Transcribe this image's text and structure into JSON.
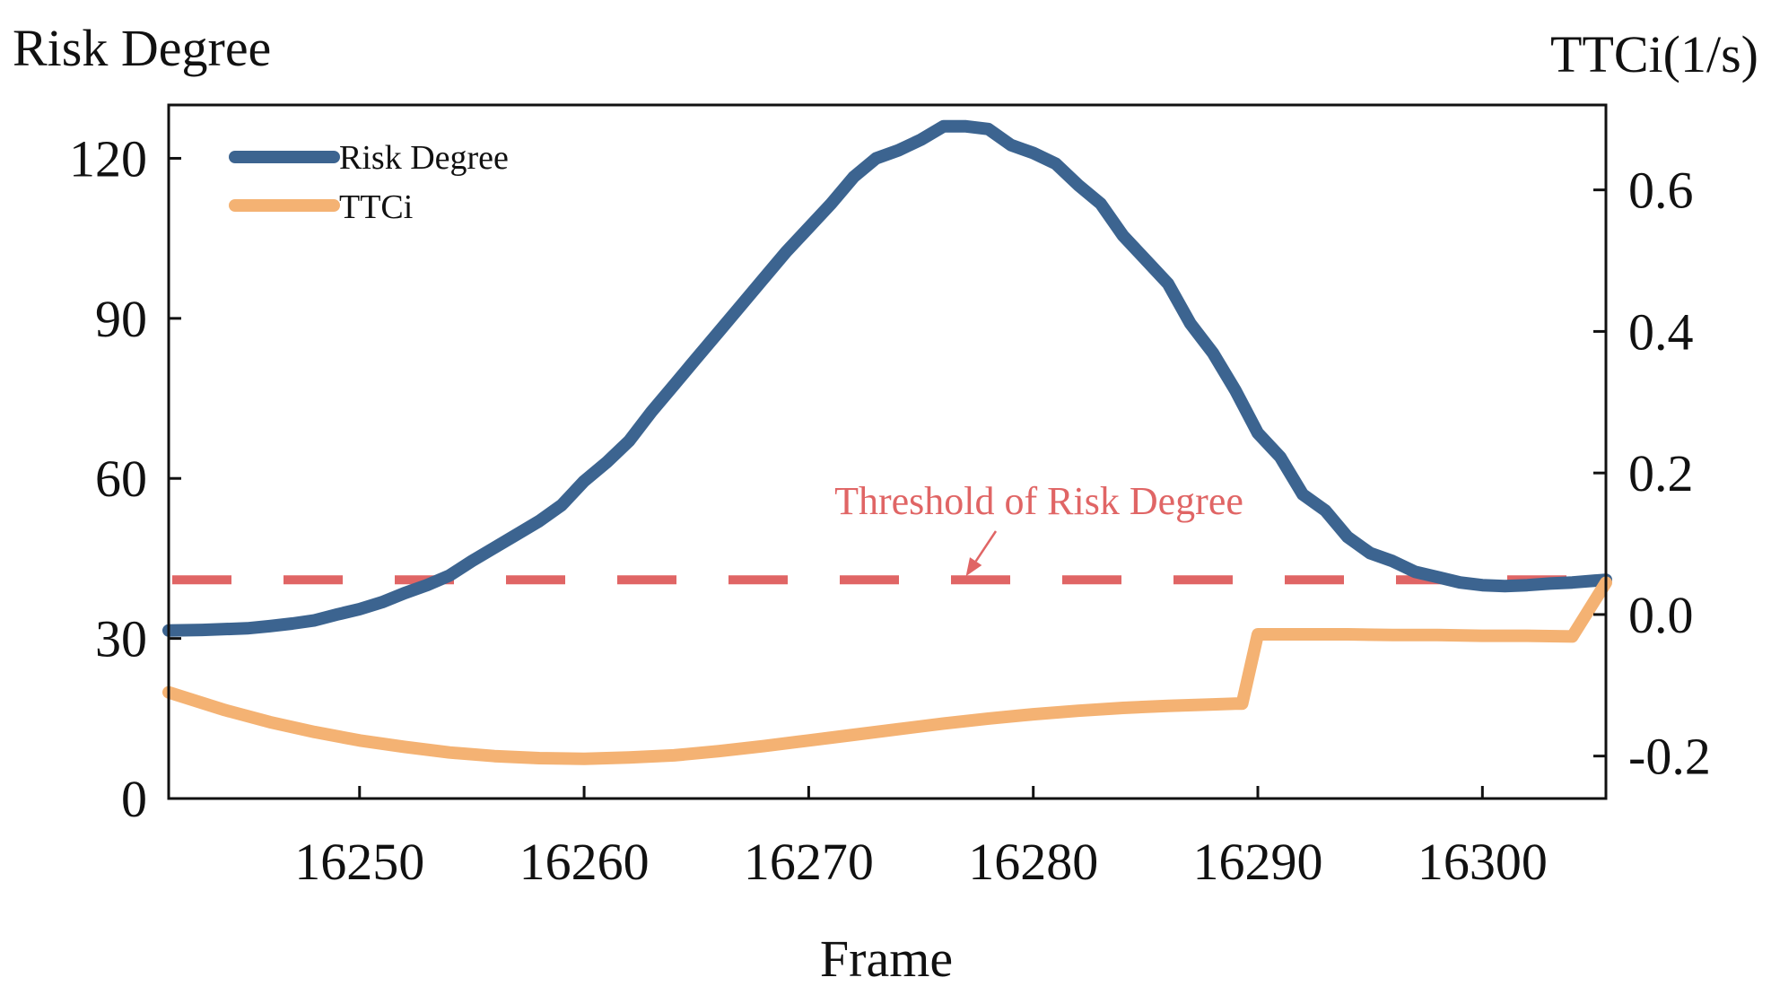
{
  "colors": {
    "risk": "#3c6490",
    "ttci": "#f4b273",
    "threshold": "#e06565",
    "axis": "#111111"
  },
  "chart_data": {
    "type": "line",
    "xlabel": "Frame",
    "ylabel_left": "Risk Degree",
    "ylabel_right": "TTCi(1/s)",
    "xlim": [
      16241.5,
      16305.5
    ],
    "ylim_left": [
      0,
      130
    ],
    "ylim_right": [
      -0.26,
      0.72
    ],
    "x_ticks": [
      16250,
      16260,
      16270,
      16280,
      16290,
      16300
    ],
    "x_tick_labels": [
      "16250",
      "16260",
      "16270",
      "16280",
      "16290",
      "16300"
    ],
    "y_left_ticks": [
      0,
      30,
      60,
      90,
      120
    ],
    "y_left_tick_labels": [
      "0",
      "30",
      "60",
      "90",
      "120"
    ],
    "y_right_ticks": [
      -0.2,
      0.0,
      0.2,
      0.4,
      0.6
    ],
    "y_right_tick_labels": [
      "-0.2",
      "0.0",
      "0.2",
      "0.4",
      "0.6"
    ],
    "legend": {
      "position": "top-left",
      "entries": [
        "Risk Degree",
        "TTCi"
      ]
    },
    "annotation": {
      "text": "Threshold of Risk Degree",
      "points_to_x": 16277,
      "points_to_y": 41
    },
    "threshold": {
      "name": "Threshold of Risk Degree",
      "value": 41,
      "axis": "left",
      "style": "dashed"
    },
    "series": [
      {
        "name": "Risk Degree",
        "axis": "left",
        "x": [
          16241.5,
          16243,
          16245,
          16246,
          16247,
          16248,
          16249,
          16250,
          16251,
          16252,
          16253,
          16254,
          16255,
          16256,
          16257,
          16258,
          16259,
          16260,
          16261,
          16262,
          16263,
          16264,
          16265,
          16266,
          16267,
          16268,
          16269,
          16270,
          16271,
          16272,
          16273,
          16274,
          16275,
          16276,
          16277,
          16278,
          16279,
          16280,
          16281,
          16282,
          16283,
          16284,
          16285,
          16286,
          16287,
          16288,
          16289,
          16290,
          16291,
          16292,
          16293,
          16294,
          16295,
          16296,
          16297,
          16298,
          16299,
          16300,
          16301,
          16302,
          16303,
          16304,
          16305.5
        ],
        "values": [
          31.5,
          31.6,
          31.9,
          32.3,
          32.8,
          33.4,
          34.5,
          35.5,
          36.8,
          38.5,
          40,
          41.8,
          44.5,
          47,
          49.5,
          52,
          55,
          59.5,
          63,
          67,
          72.5,
          77.5,
          82.5,
          87.5,
          92.5,
          97.5,
          102.5,
          107,
          111.5,
          116.5,
          120,
          121.5,
          123.5,
          126,
          126,
          125.5,
          122.5,
          121,
          119,
          115,
          111.5,
          105.5,
          101,
          96.5,
          89,
          83.5,
          76.5,
          68.5,
          64,
          57,
          54,
          49,
          46,
          44.5,
          42.5,
          41.5,
          40.5,
          40,
          39.8,
          40,
          40.3,
          40.5,
          41
        ]
      },
      {
        "name": "TTCi",
        "axis": "right",
        "x": [
          16241.5,
          16244,
          16246,
          16248,
          16250,
          16252,
          16254,
          16256,
          16258,
          16260,
          16262,
          16264,
          16266,
          16268,
          16270,
          16272,
          16274,
          16276,
          16278,
          16280,
          16282,
          16284,
          16286,
          16288,
          16289,
          16289.3,
          16290,
          16292,
          16294,
          16296,
          16298,
          16300,
          16302,
          16304,
          16305.5
        ],
        "values": [
          -0.11,
          -0.135,
          -0.152,
          -0.166,
          -0.178,
          -0.187,
          -0.195,
          -0.2,
          -0.203,
          -0.204,
          -0.202,
          -0.199,
          -0.193,
          -0.186,
          -0.178,
          -0.17,
          -0.162,
          -0.154,
          -0.147,
          -0.141,
          -0.136,
          -0.132,
          -0.129,
          -0.127,
          -0.126,
          -0.126,
          -0.028,
          -0.028,
          -0.028,
          -0.029,
          -0.029,
          -0.03,
          -0.03,
          -0.031,
          0.045
        ]
      }
    ]
  }
}
